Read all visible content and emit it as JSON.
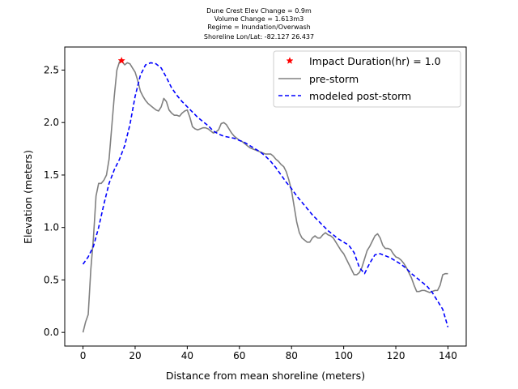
{
  "chart_data": {
    "type": "line",
    "title_lines": [
      "Dune Crest Elev Change = 0.9m",
      "Volume Change = 1.613m3",
      "Regime = Inundation/Overwash",
      "Shoreline Lon/Lat: -82.127 26.437"
    ],
    "xlabel": "Distance from mean shoreline (meters)",
    "ylabel": "Elevation (meters)",
    "xlim": [
      -7,
      147
    ],
    "ylim": [
      -0.13,
      2.72
    ],
    "x_ticks": [
      0,
      20,
      40,
      60,
      80,
      100,
      120,
      140
    ],
    "y_ticks": [
      0.0,
      0.5,
      1.0,
      1.5,
      2.0,
      2.5
    ],
    "x_tick_labels": [
      "0",
      "20",
      "40",
      "60",
      "80",
      "100",
      "120",
      "140"
    ],
    "y_tick_labels": [
      "0.0",
      "0.5",
      "1.0",
      "1.5",
      "2.0",
      "2.5"
    ],
    "grid": false,
    "legend_position": "top-right",
    "series": [
      {
        "name": "Impact Duration(hr) = 1.0",
        "style": "star-marker",
        "color": "#ff0000",
        "x": [
          14.8
        ],
        "y": [
          2.59
        ]
      },
      {
        "name": "pre-storm",
        "style": "solid",
        "color": "#808080",
        "x": [
          0,
          1,
          2,
          3,
          4,
          5,
          6,
          7,
          8,
          9,
          10,
          11,
          12,
          13,
          14,
          15,
          16,
          17,
          18,
          19,
          20,
          21,
          22,
          23,
          24,
          25,
          26,
          27,
          28,
          29,
          30,
          31,
          32,
          33,
          34,
          35,
          36,
          37,
          38,
          39,
          40,
          41,
          42,
          43,
          44,
          45,
          46,
          47,
          48,
          49,
          50,
          51,
          52,
          53,
          54,
          55,
          56,
          57,
          58,
          59,
          60,
          61,
          62,
          63,
          64,
          65,
          66,
          67,
          68,
          69,
          70,
          71,
          72,
          73,
          74,
          75,
          76,
          77,
          78,
          79,
          80,
          81,
          82,
          83,
          84,
          85,
          86,
          87,
          88,
          89,
          90,
          91,
          92,
          93,
          94,
          95,
          96,
          97,
          98,
          99,
          100,
          101,
          102,
          103,
          104,
          105,
          106,
          107,
          108,
          109,
          110,
          111,
          112,
          113,
          114,
          115,
          116,
          117,
          118,
          119,
          120,
          121,
          122,
          123,
          124,
          125,
          126,
          127,
          128,
          129,
          130,
          131,
          132,
          133,
          134,
          135,
          136,
          137,
          138,
          139,
          140
        ],
        "y": [
          0.0,
          0.1,
          0.17,
          0.6,
          0.9,
          1.3,
          1.42,
          1.42,
          1.45,
          1.5,
          1.65,
          1.95,
          2.25,
          2.5,
          2.58,
          2.58,
          2.55,
          2.57,
          2.56,
          2.52,
          2.48,
          2.4,
          2.3,
          2.25,
          2.21,
          2.18,
          2.16,
          2.14,
          2.12,
          2.11,
          2.15,
          2.23,
          2.2,
          2.12,
          2.09,
          2.07,
          2.07,
          2.06,
          2.09,
          2.11,
          2.12,
          2.05,
          1.96,
          1.94,
          1.93,
          1.94,
          1.95,
          1.95,
          1.94,
          1.92,
          1.9,
          1.91,
          1.93,
          1.99,
          2.0,
          1.98,
          1.94,
          1.9,
          1.87,
          1.85,
          1.83,
          1.82,
          1.8,
          1.78,
          1.76,
          1.75,
          1.74,
          1.73,
          1.72,
          1.71,
          1.7,
          1.7,
          1.7,
          1.68,
          1.65,
          1.63,
          1.6,
          1.58,
          1.53,
          1.45,
          1.35,
          1.2,
          1.05,
          0.95,
          0.9,
          0.88,
          0.86,
          0.86,
          0.9,
          0.92,
          0.9,
          0.9,
          0.93,
          0.95,
          0.93,
          0.92,
          0.9,
          0.86,
          0.82,
          0.78,
          0.75,
          0.7,
          0.65,
          0.6,
          0.55,
          0.55,
          0.57,
          0.62,
          0.7,
          0.78,
          0.82,
          0.87,
          0.92,
          0.94,
          0.9,
          0.83,
          0.8,
          0.8,
          0.79,
          0.75,
          0.72,
          0.71,
          0.69,
          0.66,
          0.62,
          0.57,
          0.52,
          0.45,
          0.39,
          0.39,
          0.4,
          0.4,
          0.39,
          0.38,
          0.39,
          0.4,
          0.4,
          0.45,
          0.55,
          0.56,
          0.56
        ]
      },
      {
        "name": "modeled post-storm",
        "style": "dashed",
        "color": "#0000ff",
        "x": [
          0,
          2,
          4,
          6,
          8,
          10,
          12,
          14,
          16,
          18,
          20,
          22,
          24,
          26,
          28,
          30,
          32,
          34,
          36,
          38,
          40,
          42,
          44,
          46,
          48,
          50,
          52,
          54,
          56,
          58,
          60,
          62,
          64,
          66,
          68,
          70,
          72,
          74,
          76,
          78,
          80,
          82,
          84,
          86,
          88,
          90,
          92,
          94,
          96,
          98,
          100,
          102,
          104,
          106,
          108,
          110,
          112,
          114,
          116,
          118,
          120,
          122,
          124,
          126,
          128,
          130,
          132,
          134,
          136,
          138,
          140
        ],
        "y": [
          0.65,
          0.72,
          0.82,
          1.0,
          1.22,
          1.42,
          1.55,
          1.65,
          1.78,
          1.98,
          2.25,
          2.45,
          2.55,
          2.57,
          2.56,
          2.52,
          2.43,
          2.33,
          2.26,
          2.2,
          2.15,
          2.1,
          2.05,
          2.01,
          1.97,
          1.92,
          1.89,
          1.87,
          1.86,
          1.85,
          1.83,
          1.81,
          1.78,
          1.75,
          1.72,
          1.68,
          1.63,
          1.57,
          1.5,
          1.43,
          1.37,
          1.3,
          1.24,
          1.18,
          1.12,
          1.07,
          1.02,
          0.97,
          0.93,
          0.89,
          0.86,
          0.83,
          0.76,
          0.62,
          0.56,
          0.66,
          0.74,
          0.75,
          0.73,
          0.71,
          0.68,
          0.65,
          0.61,
          0.56,
          0.52,
          0.48,
          0.44,
          0.38,
          0.3,
          0.22,
          0.05
        ]
      }
    ]
  }
}
